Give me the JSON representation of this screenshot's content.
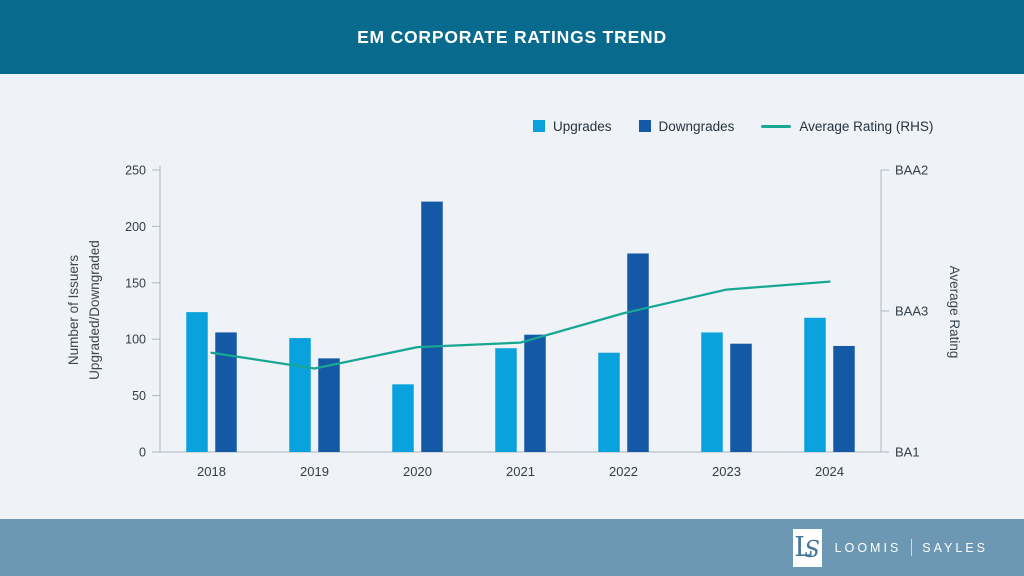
{
  "header": {
    "title": "EM CORPORATE RATINGS TREND"
  },
  "colors": {
    "page_background": "#EFF2F7",
    "header_background": "#086A8D",
    "upgrades": "#0AA2DC",
    "downgrades": "#1459A6",
    "average_rating_line": "#17A792",
    "axis": "#ADB6BF",
    "tick_text": "#333E48",
    "footer_band": "#6D98B3",
    "monogram_blue": "#44779C"
  },
  "legend": {
    "items": [
      {
        "id": "upgrades",
        "label": "Upgrades",
        "marker": "square",
        "color": "#0AA2DC"
      },
      {
        "id": "downgrades",
        "label": "Downgrades",
        "marker": "square",
        "color": "#1459A6"
      },
      {
        "id": "average-rating",
        "label": "Average Rating (RHS)",
        "marker": "line",
        "color": "#17A792"
      }
    ]
  },
  "chart_data": {
    "type": "bar",
    "title": "EM CORPORATE RATINGS TREND",
    "categories": [
      "2018",
      "2019",
      "2020",
      "2021",
      "2022",
      "2023",
      "2024"
    ],
    "series": [
      {
        "name": "Upgrades",
        "type": "bar",
        "color": "#0AA2DC",
        "values": [
          124,
          101,
          60,
          92,
          88,
          106,
          119
        ]
      },
      {
        "name": "Downgrades",
        "type": "bar",
        "color": "#1459A6",
        "values": [
          106,
          83,
          222,
          104,
          176,
          96,
          94
        ]
      },
      {
        "name": "Average Rating (RHS)",
        "type": "line",
        "color": "#17A792",
        "axis": "right",
        "values_left_axis_units": [
          88,
          74,
          93,
          97,
          123,
          144,
          151
        ],
        "values_rating_notches": [
          0.7,
          0.59,
          0.74,
          0.78,
          0.98,
          1.15,
          1.21
        ],
        "notch_scale": {
          "0": "BA1",
          "1": "BAA3",
          "2": "BAA2"
        }
      }
    ],
    "left_axis": {
      "label_lines": [
        "Number of Issuers",
        "Upgraded/Downgraded"
      ],
      "min": 0,
      "max": 250,
      "tick_step": 50,
      "ticks": [
        0,
        50,
        100,
        150,
        200,
        250
      ]
    },
    "right_axis": {
      "label": "Average Rating",
      "tick_labels": [
        "BA1",
        "BAA3",
        "BAA2"
      ],
      "tick_values_in_left_axis_units": [
        0,
        125,
        250
      ]
    },
    "grid": false,
    "legend_position": "top-right"
  },
  "footer": {
    "monogram_letters": [
      "L",
      "S"
    ],
    "brand_primary": "LOOMIS",
    "brand_secondary": "SAYLES"
  }
}
